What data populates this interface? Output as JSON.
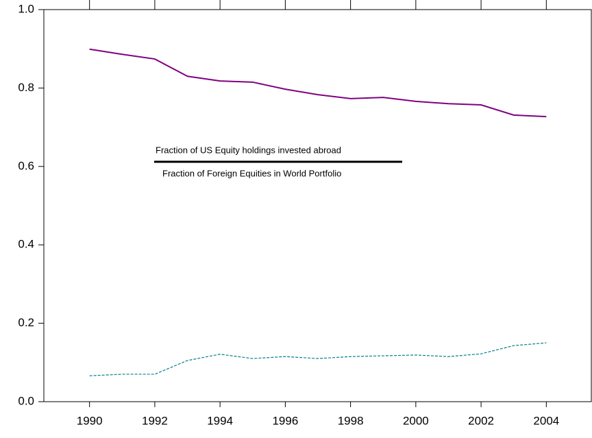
{
  "chart_data": {
    "type": "line",
    "x": [
      1990,
      1991,
      1992,
      1993,
      1994,
      1995,
      1996,
      1997,
      1998,
      1999,
      2000,
      2001,
      2002,
      2003,
      2004
    ],
    "series": [
      {
        "name": "Fraction of US Equity holdings invested abroad",
        "color": "#00808b",
        "dashed": true,
        "values": [
          0.066,
          0.07,
          0.07,
          0.105,
          0.121,
          0.11,
          0.115,
          0.11,
          0.115,
          0.117,
          0.119,
          0.115,
          0.122,
          0.143,
          0.15
        ]
      },
      {
        "name": "Fraction of Foreign Equities in World Portfolio",
        "color": "#800080",
        "dashed": false,
        "values": [
          0.899,
          0.886,
          0.874,
          0.83,
          0.818,
          0.815,
          0.797,
          0.783,
          0.773,
          0.776,
          0.766,
          0.76,
          0.757,
          0.731,
          0.727
        ]
      }
    ],
    "xlim": [
      1988.6,
      2005.4
    ],
    "xticks": [
      1990,
      1992,
      1994,
      1996,
      1998,
      2000,
      2002,
      2004
    ],
    "ylim": [
      0,
      1
    ],
    "yticks": [
      {
        "value": 0,
        "label": "0.0"
      },
      {
        "value": 0.2,
        "label": "0.2"
      },
      {
        "value": 0.4,
        "label": "0.4"
      },
      {
        "value": 0.6,
        "label": "0.6"
      },
      {
        "value": 0.8,
        "label": "0.8"
      },
      {
        "value": 1,
        "label": "1.0"
      }
    ],
    "grid": false
  }
}
